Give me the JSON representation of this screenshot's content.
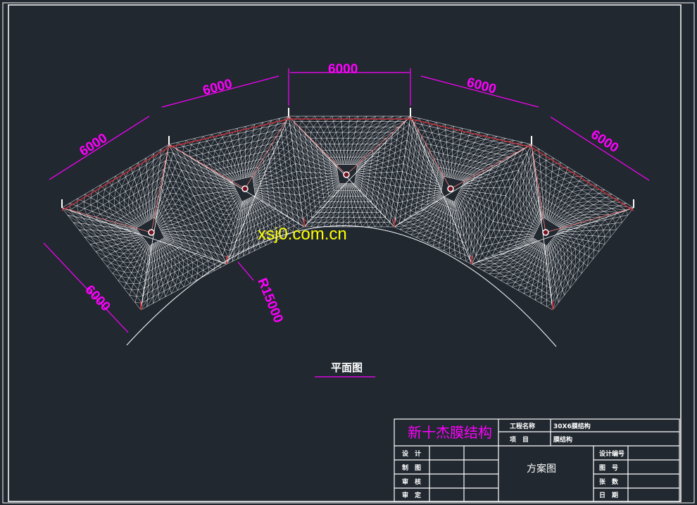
{
  "drawing": {
    "dimensions": [
      "6000",
      "6000",
      "6000",
      "6000",
      "6000",
      "6000"
    ],
    "radius_label": "R15000",
    "watermark": "xsj0.com.cn",
    "view_title": "平面图"
  },
  "title_block": {
    "company": "新十杰膜结构",
    "project_name_label": "工程名称",
    "project_name_value": "30X6膜结构",
    "item_label": "项　目",
    "item_value": "膜结构",
    "roles": [
      "设　计",
      "制　图",
      "审　核",
      "审　定"
    ],
    "drawing_type": "方案图",
    "right_labels": [
      "设计编号",
      "图　号",
      "张　数",
      "日　期"
    ]
  },
  "colors": {
    "background": "#212830",
    "mesh": "#ffffff",
    "edge_cable": "#c0303a",
    "dimension": "#ff00ff",
    "watermark": "#ffff00"
  }
}
